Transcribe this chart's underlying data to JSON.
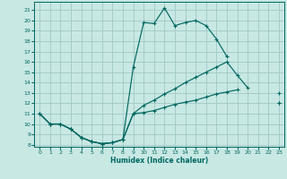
{
  "xlabel": "Humidex (Indice chaleur)",
  "bg_color": "#c8e8e4",
  "grid_color": "#a0c8c4",
  "line_color": "#006860",
  "xlim": [
    -0.5,
    23.5
  ],
  "ylim": [
    7.8,
    21.8
  ],
  "xticks": [
    0,
    1,
    2,
    3,
    4,
    5,
    6,
    7,
    8,
    9,
    10,
    11,
    12,
    13,
    14,
    15,
    16,
    17,
    18,
    19,
    20,
    21,
    22,
    23
  ],
  "yticks": [
    8,
    9,
    10,
    11,
    12,
    13,
    14,
    15,
    16,
    17,
    18,
    19,
    20,
    21
  ],
  "curves": [
    {
      "segments": [
        {
          "x": [
            0,
            1,
            2,
            3,
            4,
            5,
            6,
            7,
            8,
            9,
            10,
            11,
            12,
            13,
            14,
            15,
            16,
            17,
            18,
            19
          ],
          "y": [
            11,
            10,
            10,
            9.5,
            8.7,
            8.3,
            8.1,
            8.2,
            8.5,
            11,
            11.1,
            11.3,
            11.6,
            11.9,
            12.1,
            12.3,
            12.6,
            12.9,
            13.1,
            13.3
          ]
        },
        {
          "x": [
            23
          ],
          "y": [
            12
          ]
        }
      ]
    },
    {
      "segments": [
        {
          "x": [
            0,
            1,
            2,
            3,
            4,
            5,
            6,
            7,
            8,
            9,
            10,
            11,
            12,
            13,
            14,
            15,
            16,
            17,
            18
          ],
          "y": [
            11,
            10,
            10,
            9.5,
            8.7,
            8.3,
            8.1,
            8.2,
            8.5,
            15.5,
            19.8,
            19.7,
            21.2,
            19.5,
            19.8,
            20.0,
            19.5,
            18.2,
            16.5
          ]
        },
        {
          "x": [
            23
          ],
          "y": [
            12
          ]
        }
      ]
    },
    {
      "segments": [
        {
          "x": [
            0,
            1,
            2,
            3,
            4,
            5,
            6,
            7,
            8,
            9,
            10,
            11,
            12,
            13,
            14,
            15,
            16,
            17,
            18,
            19,
            20
          ],
          "y": [
            11,
            10,
            10,
            9.5,
            8.7,
            8.3,
            8.1,
            8.2,
            8.5,
            11.0,
            11.8,
            12.3,
            12.9,
            13.4,
            14.0,
            14.5,
            15.0,
            15.5,
            16.0,
            14.7,
            13.5
          ]
        },
        {
          "x": [
            23
          ],
          "y": [
            13
          ]
        }
      ]
    }
  ]
}
